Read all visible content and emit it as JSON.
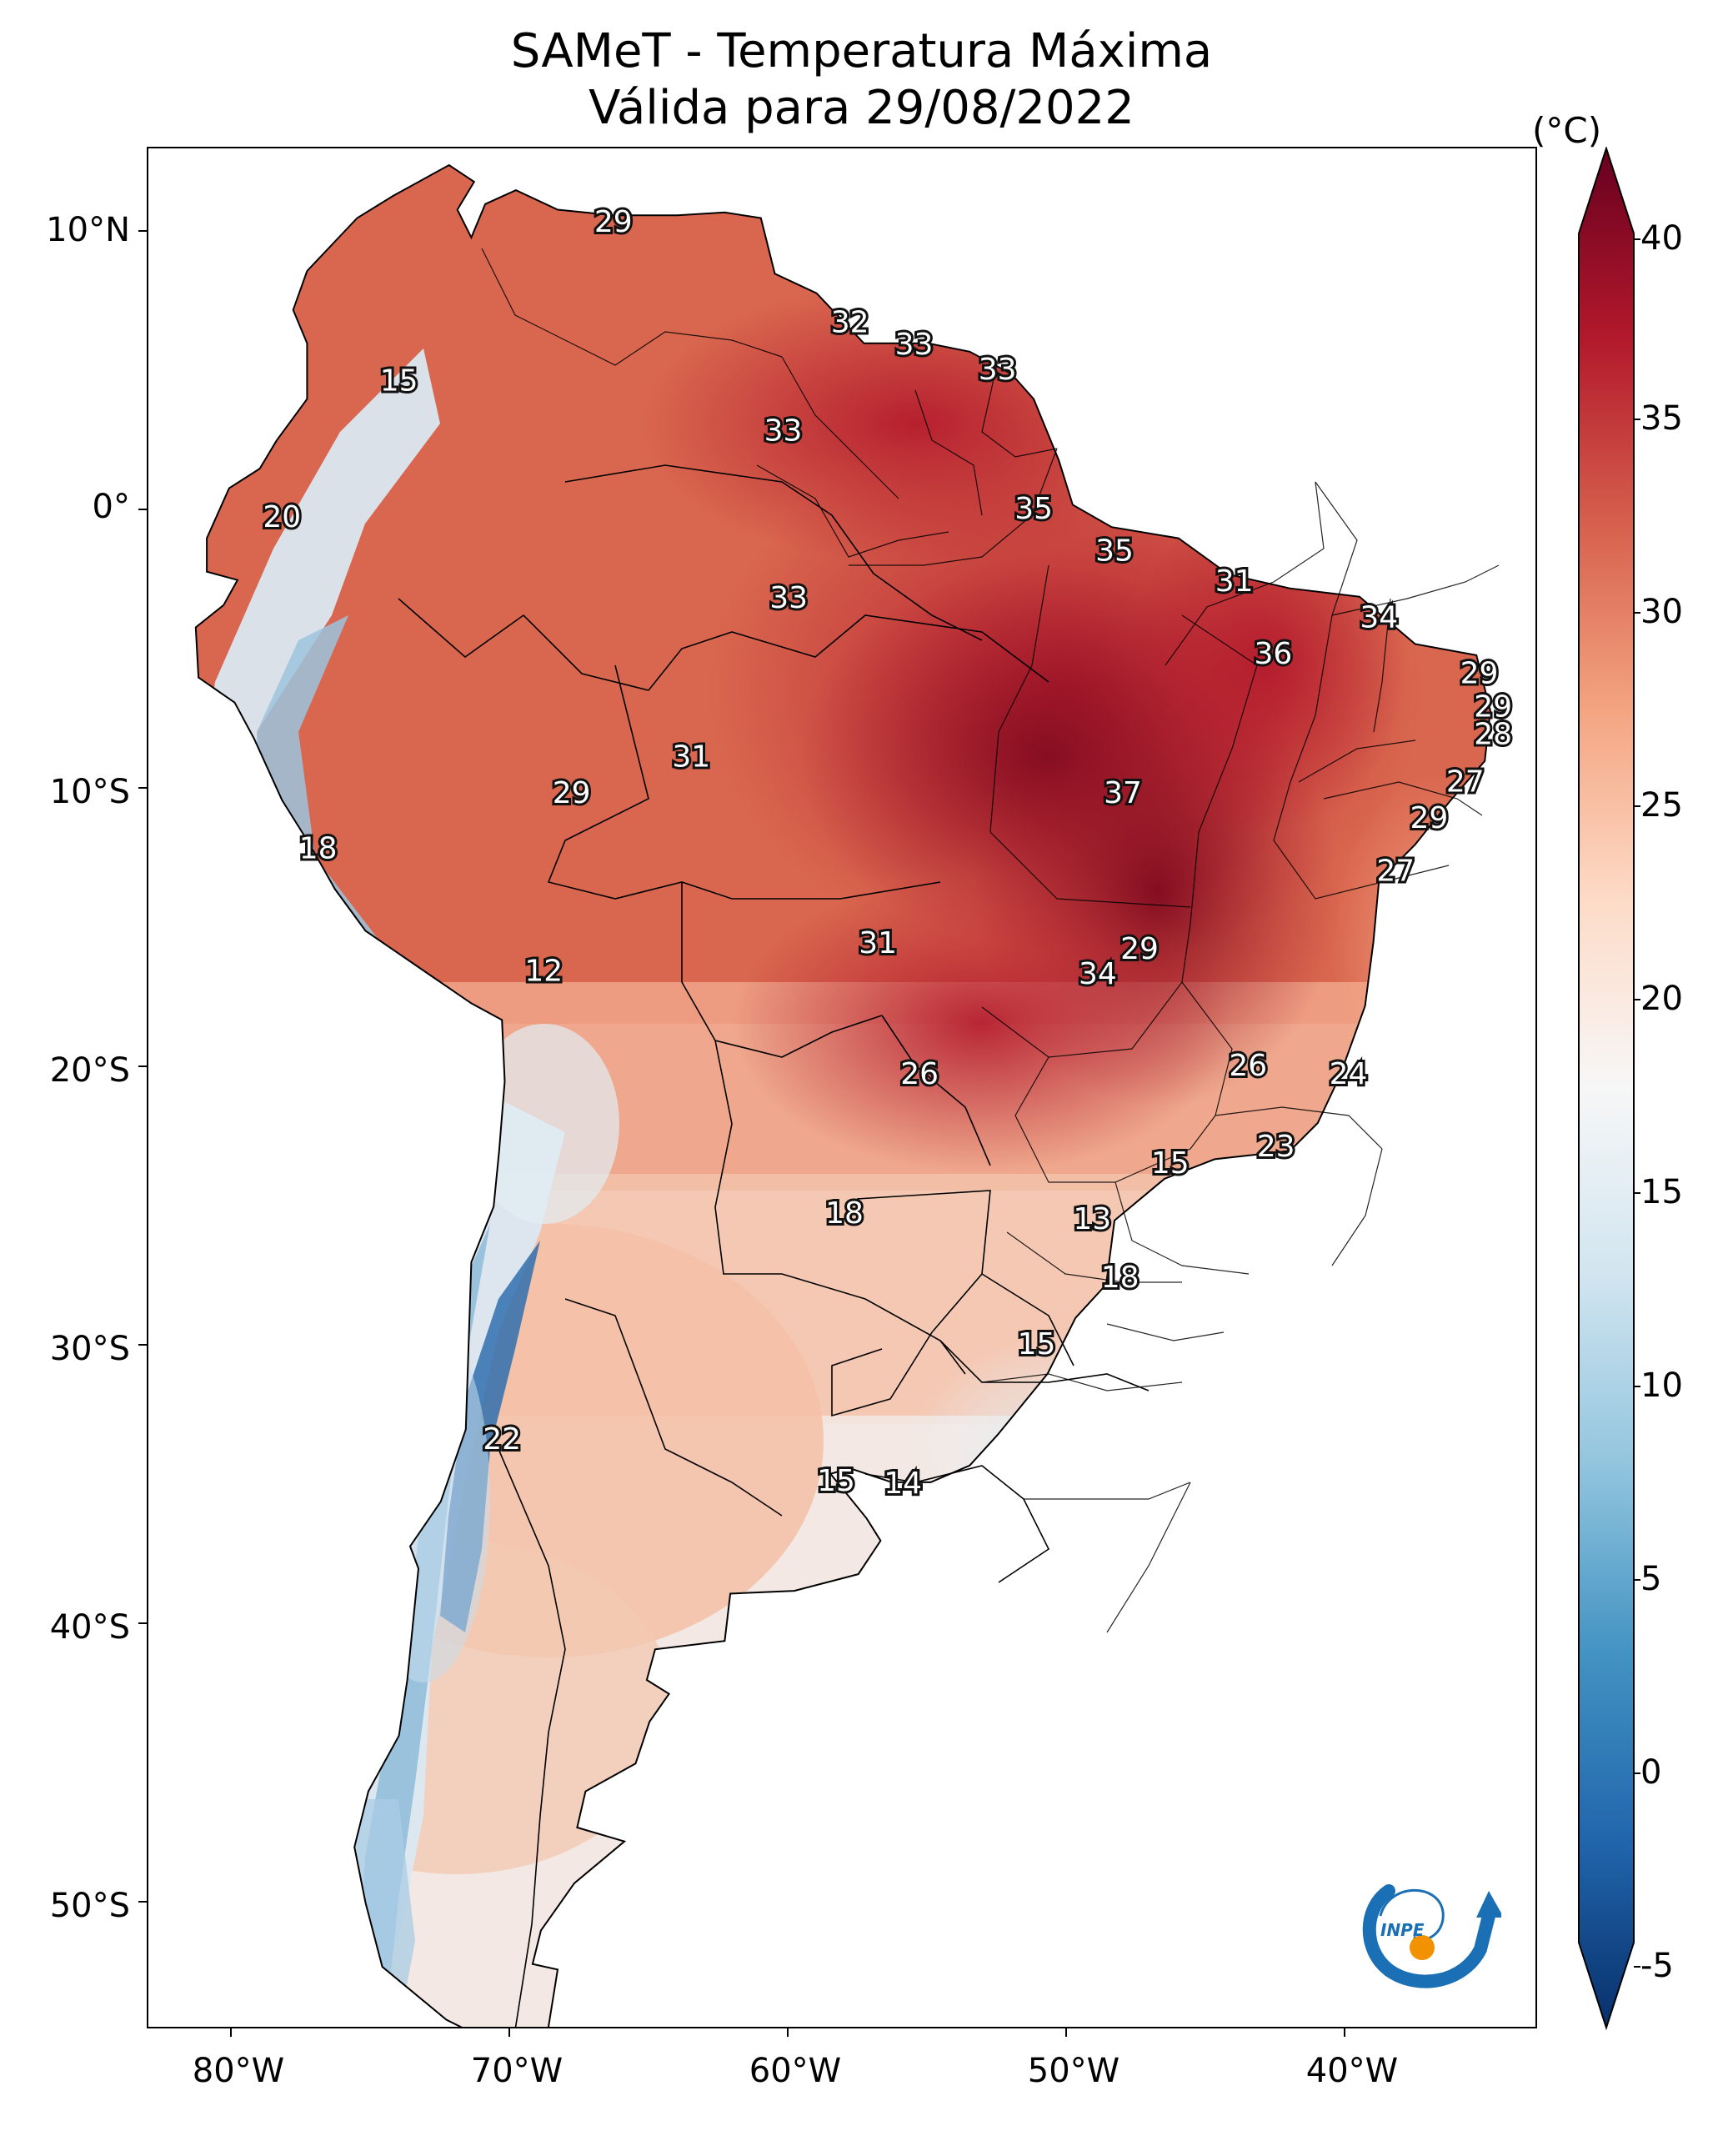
{
  "title": {
    "line1": "SAMeT - Temperatura Máxima",
    "line2": "Válida para 29/08/2022"
  },
  "colorbar": {
    "unit": "(°C)",
    "ticks": [
      "40",
      "35",
      "30",
      "25",
      "20",
      "15",
      "10",
      "5",
      "0",
      "-5"
    ],
    "min": -5,
    "max": 40,
    "colors": [
      "#08306b",
      "#2166ac",
      "#4393c3",
      "#92c5de",
      "#d1e5f0",
      "#f7f7f7",
      "#fddbc7",
      "#f4a582",
      "#d6604d",
      "#b2182b",
      "#67001f"
    ]
  },
  "axes": {
    "lat_ticks": [
      "10°N",
      "0°",
      "10°S",
      "20°S",
      "30°S",
      "40°S",
      "50°S"
    ],
    "lon_ticks": [
      "80°W",
      "70°W",
      "60°W",
      "50°W",
      "40°W"
    ]
  },
  "logo": {
    "text": "INPE",
    "arrow_color": "#1a6fb5",
    "dot_color": "#f39200"
  },
  "map_values": [
    {
      "value": "29",
      "lon": -66.3,
      "lat": 10.3
    },
    {
      "value": "15",
      "lon": -74.0,
      "lat": 4.6
    },
    {
      "value": "20",
      "lon": -78.2,
      "lat": -0.3
    },
    {
      "value": "32",
      "lon": -57.8,
      "lat": 6.7
    },
    {
      "value": "33",
      "lon": -55.5,
      "lat": 5.9
    },
    {
      "value": "33",
      "lon": -52.5,
      "lat": 5.0
    },
    {
      "value": "33",
      "lon": -60.2,
      "lat": 2.8
    },
    {
      "value": "35",
      "lon": -51.2,
      "lat": 0.0
    },
    {
      "value": "35",
      "lon": -48.3,
      "lat": -1.5
    },
    {
      "value": "31",
      "lon": -44.0,
      "lat": -2.6
    },
    {
      "value": "34",
      "lon": -38.8,
      "lat": -3.9
    },
    {
      "value": "33",
      "lon": -60.0,
      "lat": -3.2
    },
    {
      "value": "36",
      "lon": -42.6,
      "lat": -5.2
    },
    {
      "value": "29",
      "lon": -35.2,
      "lat": -5.9
    },
    {
      "value": "29",
      "lon": -34.7,
      "lat": -7.1
    },
    {
      "value": "28",
      "lon": -34.7,
      "lat": -8.1
    },
    {
      "value": "27",
      "lon": -35.7,
      "lat": -9.8
    },
    {
      "value": "29",
      "lon": -37.0,
      "lat": -11.1
    },
    {
      "value": "27",
      "lon": -38.2,
      "lat": -13.0
    },
    {
      "value": "31",
      "lon": -63.5,
      "lat": -8.9
    },
    {
      "value": "29",
      "lon": -67.8,
      "lat": -10.2
    },
    {
      "value": "37",
      "lon": -48.0,
      "lat": -10.2
    },
    {
      "value": "18",
      "lon": -76.9,
      "lat": -12.2
    },
    {
      "value": "31",
      "lon": -56.8,
      "lat": -15.6
    },
    {
      "value": "29",
      "lon": -47.4,
      "lat": -15.8
    },
    {
      "value": "34",
      "lon": -48.9,
      "lat": -16.7
    },
    {
      "value": "12",
      "lon": -68.8,
      "lat": -16.6
    },
    {
      "value": "26",
      "lon": -55.3,
      "lat": -20.3
    },
    {
      "value": "26",
      "lon": -43.5,
      "lat": -20.0
    },
    {
      "value": "24",
      "lon": -39.9,
      "lat": -20.3
    },
    {
      "value": "23",
      "lon": -42.5,
      "lat": -22.9
    },
    {
      "value": "15",
      "lon": -46.3,
      "lat": -23.5
    },
    {
      "value": "18",
      "lon": -58.0,
      "lat": -25.3
    },
    {
      "value": "13",
      "lon": -49.1,
      "lat": -25.5
    },
    {
      "value": "18",
      "lon": -48.1,
      "lat": -27.6
    },
    {
      "value": "15",
      "lon": -51.1,
      "lat": -30.0
    },
    {
      "value": "22",
      "lon": -70.3,
      "lat": -33.4
    },
    {
      "value": "15",
      "lon": -58.3,
      "lat": -34.9
    },
    {
      "value": "14",
      "lon": -55.9,
      "lat": -35.0
    }
  ]
}
